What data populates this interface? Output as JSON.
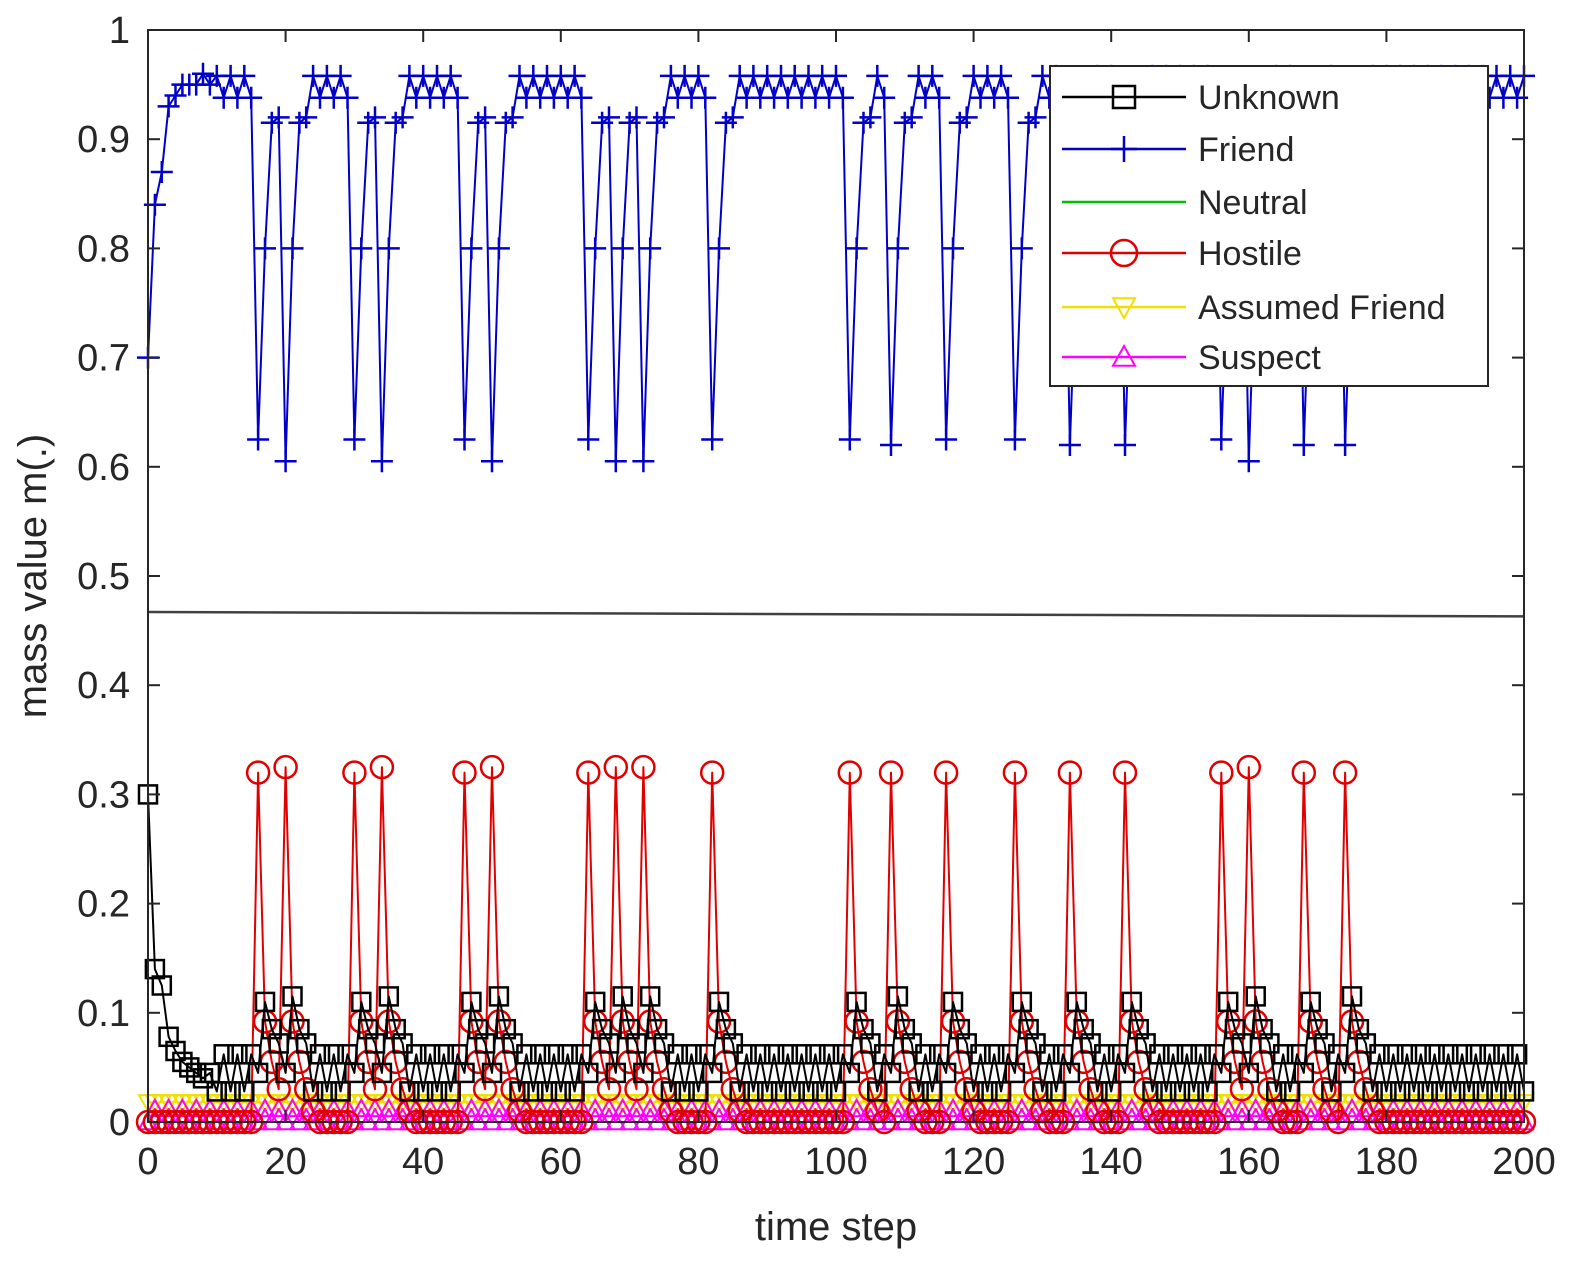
{
  "chart_data": {
    "type": "line",
    "title": "",
    "xlabel": "time step",
    "ylabel": "mass value m(.)",
    "xlim": [
      0,
      200
    ],
    "ylim": [
      0,
      1
    ],
    "xticks": [
      0,
      20,
      40,
      60,
      80,
      100,
      120,
      140,
      160,
      180,
      200
    ],
    "yticks": [
      0,
      0.1,
      0.2,
      0.3,
      0.4,
      0.5,
      0.6,
      0.7,
      0.8,
      0.9,
      1
    ],
    "xtick_labels": [
      "0",
      "20",
      "40",
      "60",
      "80",
      "100",
      "120",
      "140",
      "160",
      "180",
      "200"
    ],
    "ytick_labels": [
      "0",
      "0.1",
      "0.2",
      "0.3",
      "0.4",
      "0.5",
      "0.6",
      "0.7",
      "0.8",
      "0.9",
      "1"
    ],
    "grid": false,
    "legend_position": "top-right",
    "hostile_spike_steps": [
      16,
      20,
      30,
      34,
      46,
      50,
      64,
      68,
      72,
      82,
      102,
      108,
      116,
      126,
      134,
      142,
      156,
      160,
      168,
      174
    ],
    "hostile_spike_peaks": [
      0.32,
      0.325,
      0.32,
      0.325,
      0.32,
      0.325,
      0.32,
      0.325,
      0.325,
      0.32,
      0.32,
      0.32,
      0.32,
      0.32,
      0.32,
      0.32,
      0.32,
      0.325,
      0.32,
      0.32
    ],
    "friend_dip_lows": [
      0.625,
      0.605,
      0.625,
      0.605,
      0.625,
      0.605,
      0.625,
      0.605,
      0.605,
      0.625,
      0.625,
      0.62,
      0.625,
      0.625,
      0.62,
      0.62,
      0.625,
      0.605,
      0.62,
      0.62
    ],
    "unknown_spike_peaks": [
      0.11,
      0.115,
      0.11,
      0.115,
      0.11,
      0.115,
      0.11,
      0.115,
      0.115,
      0.11,
      0.11,
      0.115,
      0.11,
      0.11,
      0.11,
      0.11,
      0.11,
      0.115,
      0.11,
      0.115
    ],
    "friend_initial": [
      0.7,
      0.84,
      0.87,
      0.93,
      0.94,
      0.95,
      0.95,
      0.95,
      0.96,
      0.95
    ],
    "unknown_initial": [
      0.3,
      0.14,
      0.125,
      0.078,
      0.065,
      0.055,
      0.05,
      0.045,
      0.04,
      0.045
    ],
    "reference_line": {
      "y_start": 0.467,
      "y_end": 0.463,
      "color": "#404040"
    },
    "series": [
      {
        "name": "Unknown",
        "color": "#000000",
        "marker": "square"
      },
      {
        "name": "Friend",
        "color": "#0000c8",
        "marker": "plus"
      },
      {
        "name": "Neutral",
        "color": "#00c000",
        "marker": "none"
      },
      {
        "name": "Hostile",
        "color": "#e00000",
        "marker": "circle"
      },
      {
        "name": "Assumed Friend",
        "color": "#f0e000",
        "marker": "triangle-down"
      },
      {
        "name": "Suspect",
        "color": "#ff00ff",
        "marker": "triangle-up"
      }
    ]
  }
}
